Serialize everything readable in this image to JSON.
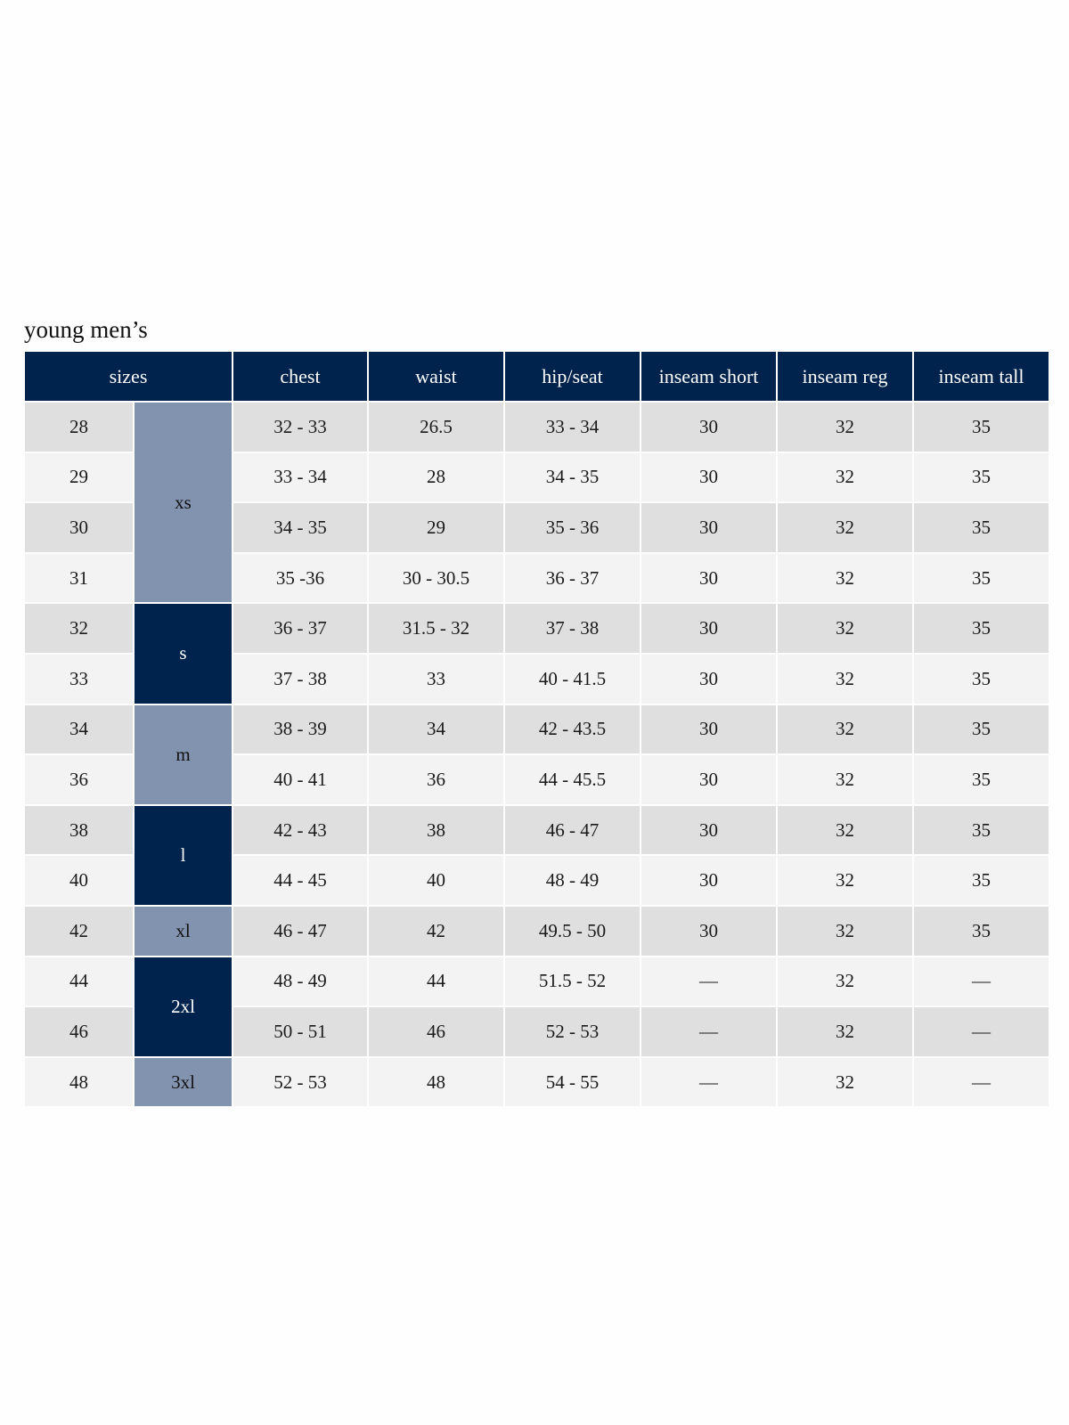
{
  "title": "young men’s",
  "headers": [
    "sizes",
    "chest",
    "waist",
    "hip/seat",
    "inseam short",
    "inseam reg",
    "inseam tall"
  ],
  "colors": {
    "navy": "#00234d",
    "slate": "#8293b0",
    "row_dark": "#dfdfdf",
    "row_light": "#f3f3f3"
  },
  "size_groups": [
    {
      "label": "xs",
      "rows": 4,
      "style": "slate"
    },
    {
      "label": "s",
      "rows": 2,
      "style": "navy"
    },
    {
      "label": "m",
      "rows": 2,
      "style": "slate"
    },
    {
      "label": "l",
      "rows": 2,
      "style": "navy"
    },
    {
      "label": "xl",
      "rows": 1,
      "style": "slate"
    },
    {
      "label": "2xl",
      "rows": 2,
      "style": "navy"
    },
    {
      "label": "3xl",
      "rows": 1,
      "style": "slate"
    }
  ],
  "rows": [
    {
      "size": "28",
      "chest": "32 - 33",
      "waist": "26.5",
      "hip": "33 - 34",
      "short": "30",
      "reg": "32",
      "tall": "35"
    },
    {
      "size": "29",
      "chest": "33 - 34",
      "waist": "28",
      "hip": "34 - 35",
      "short": "30",
      "reg": "32",
      "tall": "35"
    },
    {
      "size": "30",
      "chest": "34 - 35",
      "waist": "29",
      "hip": "35 - 36",
      "short": "30",
      "reg": "32",
      "tall": "35"
    },
    {
      "size": "31",
      "chest": "35 -36",
      "waist": "30 - 30.5",
      "hip": "36 - 37",
      "short": "30",
      "reg": "32",
      "tall": "35"
    },
    {
      "size": "32",
      "chest": "36 - 37",
      "waist": "31.5 - 32",
      "hip": "37 - 38",
      "short": "30",
      "reg": "32",
      "tall": "35"
    },
    {
      "size": "33",
      "chest": "37 - 38",
      "waist": "33",
      "hip": "40 - 41.5",
      "short": "30",
      "reg": "32",
      "tall": "35"
    },
    {
      "size": "34",
      "chest": "38 - 39",
      "waist": "34",
      "hip": "42 - 43.5",
      "short": "30",
      "reg": "32",
      "tall": "35"
    },
    {
      "size": "36",
      "chest": "40 - 41",
      "waist": "36",
      "hip": "44 - 45.5",
      "short": "30",
      "reg": "32",
      "tall": "35"
    },
    {
      "size": "38",
      "chest": "42 - 43",
      "waist": "38",
      "hip": "46 - 47",
      "short": "30",
      "reg": "32",
      "tall": "35"
    },
    {
      "size": "40",
      "chest": "44 - 45",
      "waist": "40",
      "hip": "48 - 49",
      "short": "30",
      "reg": "32",
      "tall": "35"
    },
    {
      "size": "42",
      "chest": "46 - 47",
      "waist": "42",
      "hip": "49.5 - 50",
      "short": "30",
      "reg": "32",
      "tall": "35"
    },
    {
      "size": "44",
      "chest": "48 - 49",
      "waist": "44",
      "hip": "51.5 - 52",
      "short": "—",
      "reg": "32",
      "tall": "—"
    },
    {
      "size": "46",
      "chest": "50 - 51",
      "waist": "46",
      "hip": "52 - 53",
      "short": "—",
      "reg": "32",
      "tall": "—"
    },
    {
      "size": "48",
      "chest": "52 - 53",
      "waist": "48",
      "hip": "54 - 55",
      "short": "—",
      "reg": "32",
      "tall": "—"
    }
  ]
}
